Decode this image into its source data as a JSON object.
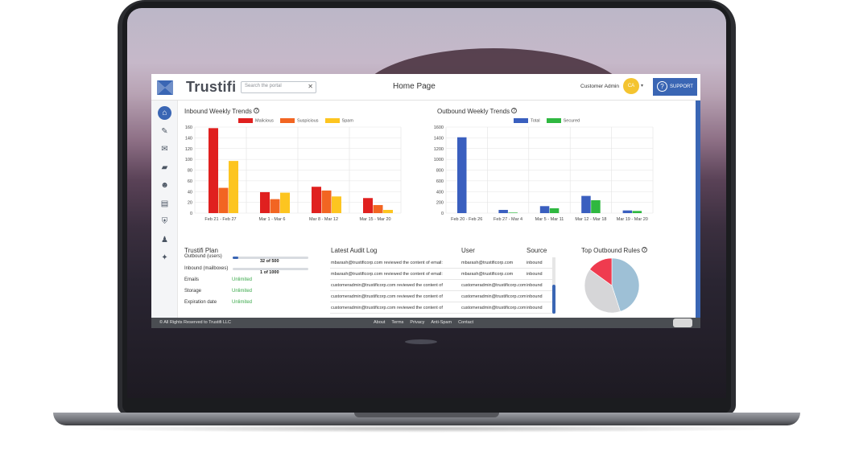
{
  "app": {
    "brand": "Trustifi",
    "page_title": "Home Page",
    "search": {
      "placeholder": "Search the portal",
      "clear_icon": "close-icon"
    },
    "user": {
      "name": "Customer Admin",
      "initials": "CA"
    },
    "support_label": "SUPPORT",
    "accent_color": "#3a66b4"
  },
  "sidebar": {
    "items": [
      {
        "icon": "home-icon",
        "active": true
      },
      {
        "icon": "compose-icon"
      },
      {
        "icon": "envelope-icon"
      },
      {
        "icon": "folder-icon"
      },
      {
        "icon": "users-icon"
      },
      {
        "icon": "archive-icon"
      },
      {
        "icon": "shield-icon"
      },
      {
        "icon": "admin-user-icon"
      },
      {
        "icon": "handshake-icon"
      }
    ]
  },
  "inbound": {
    "title": "Inbound Weekly Trends",
    "legend": [
      "Malicious",
      "Suspicious",
      "Spam"
    ]
  },
  "outbound": {
    "title": "Outbound Weekly Trends",
    "legend": [
      "Total",
      "Secured"
    ]
  },
  "chart_data": [
    {
      "type": "bar",
      "title": "Inbound Weekly Trends",
      "categories": [
        "Feb 21 - Feb 27",
        "Mar 1 - Mar 6",
        "Mar 8 - Mar 12",
        "Mar 15 - Mar 20"
      ],
      "series": [
        {
          "name": "Malicious",
          "color": "#e0201f",
          "values": [
            158,
            39,
            49,
            28
          ]
        },
        {
          "name": "Suspicious",
          "color": "#f26522",
          "values": [
            47,
            26,
            42,
            15
          ]
        },
        {
          "name": "Spam",
          "color": "#fdc520",
          "values": [
            97,
            38,
            31,
            6
          ]
        }
      ],
      "ylim": [
        0,
        160
      ],
      "yticks": [
        0,
        20,
        40,
        60,
        80,
        100,
        120,
        140,
        160
      ],
      "grid": true,
      "legend": "top"
    },
    {
      "type": "bar",
      "title": "Outbound Weekly Trends",
      "categories": [
        "Feb 20 - Feb 26",
        "Feb 27 - Mar 4",
        "Mar 5 - Mar 11",
        "Mar 12 - Mar 18",
        "Mar 19 - Mar 20"
      ],
      "series": [
        {
          "name": "Total",
          "color": "#3a5fbf",
          "values": [
            1410,
            60,
            130,
            320,
            50
          ]
        },
        {
          "name": "Secured",
          "color": "#2fb840",
          "values": [
            0,
            10,
            90,
            240,
            40
          ]
        }
      ],
      "ylim": [
        0,
        1600
      ],
      "yticks": [
        0,
        200,
        400,
        600,
        800,
        1000,
        1200,
        1400,
        1600
      ],
      "grid": true,
      "legend": "top"
    },
    {
      "type": "pie",
      "title": "Top Outbound Rules",
      "slices": [
        {
          "color": "#9ec0d6",
          "value": 45
        },
        {
          "color": "#d6d6d8",
          "value": 40
        },
        {
          "color": "#ef3b4f",
          "value": 15
        }
      ]
    }
  ],
  "plan": {
    "title": "Trustifi Plan",
    "outbound_label": "Outbound (users)",
    "outbound_value": "32 of 500",
    "outbound_fraction": 0.064,
    "inbound_label": "Inbound (mailboxes)",
    "inbound_value": "1 of 1000",
    "inbound_fraction": 0.001,
    "rows": [
      {
        "label": "Emails",
        "value": "Unlimited"
      },
      {
        "label": "Storage",
        "value": "Unlimited"
      },
      {
        "label": "Expiration date",
        "value": "Unlimited"
      }
    ]
  },
  "audit": {
    "title": "Latest Audit Log",
    "col_user": "User",
    "col_source": "Source",
    "rows": [
      {
        "log": "mbarash@trustificorp.com reviewed the content of email:",
        "user": "mbarash@trustificorp.com",
        "source": "inbound"
      },
      {
        "log": "mbarash@trustificorp.com reviewed the content of email:",
        "user": "mbarash@trustificorp.com",
        "source": "inbound"
      },
      {
        "log": "customeradmin@trustificorp.com reviewed the content of",
        "user": "customeradmin@trustificorp.com",
        "source": "inbound"
      },
      {
        "log": "customeradmin@trustificorp.com reviewed the content of",
        "user": "customeradmin@trustificorp.com",
        "source": "inbound"
      },
      {
        "log": "customeradmin@trustificorp.com reviewed the content of",
        "user": "customeradmin@trustificorp.com",
        "source": "inbound"
      }
    ]
  },
  "rules": {
    "title": "Top Outbound Rules"
  },
  "footer": {
    "copyright": "© All Rights Reserved to Trustifi LLC",
    "links": [
      "About",
      "Terms",
      "Privacy",
      "Anti-Spam",
      "Contact"
    ]
  }
}
